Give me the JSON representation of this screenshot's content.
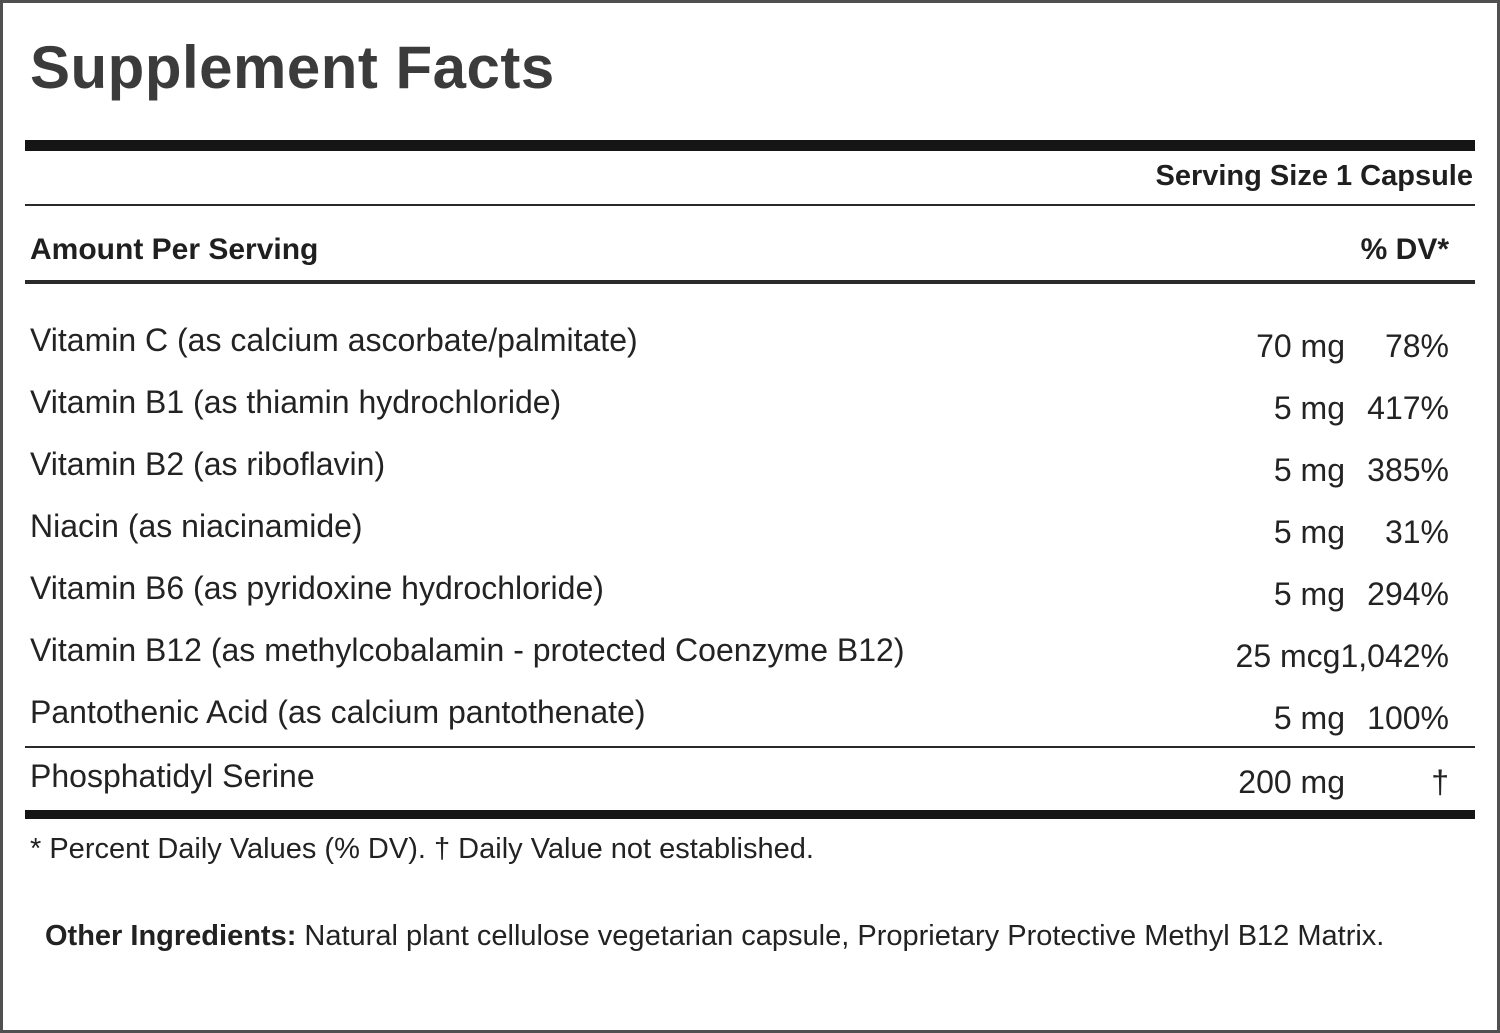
{
  "panel": {
    "title": "Supplement Facts",
    "serving_size": "Serving Size 1 Capsule",
    "header": {
      "amount_col": "Amount Per Serving",
      "dv_col": "% DV*"
    },
    "rows": [
      {
        "name": "Vitamin C (as calcium ascorbate/palmitate)",
        "amount": "70 mg",
        "dv": "78%"
      },
      {
        "name": "Vitamin B1 (as thiamin hydrochloride)",
        "amount": "5 mg",
        "dv": "417%"
      },
      {
        "name": "Vitamin B2 (as riboflavin)",
        "amount": "5 mg",
        "dv": "385%"
      },
      {
        "name": "Niacin (as niacinamide)",
        "amount": "5 mg",
        "dv": "31%"
      },
      {
        "name": "Vitamin B6 (as pyridoxine hydrochloride)",
        "amount": "5 mg",
        "dv": "294%"
      },
      {
        "name": "Vitamin B12 (as methylcobalamin - protected Coenzyme B12)",
        "amount": "25 mcg",
        "dv": "1,042%"
      },
      {
        "name": "Pantothenic Acid (as calcium pantothenate)",
        "amount": "5 mg",
        "dv": "100%"
      }
    ],
    "separated_row": {
      "name": "Phosphatidyl Serine",
      "amount": "200 mg",
      "dv": "†"
    },
    "footnote": "* Percent Daily Values (% DV). † Daily Value not established."
  },
  "other_ingredients": {
    "label": "Other Ingredients:",
    "text": " Natural plant cellulose vegetarian capsule, Proprietary Protective Methyl B12 Matrix."
  }
}
